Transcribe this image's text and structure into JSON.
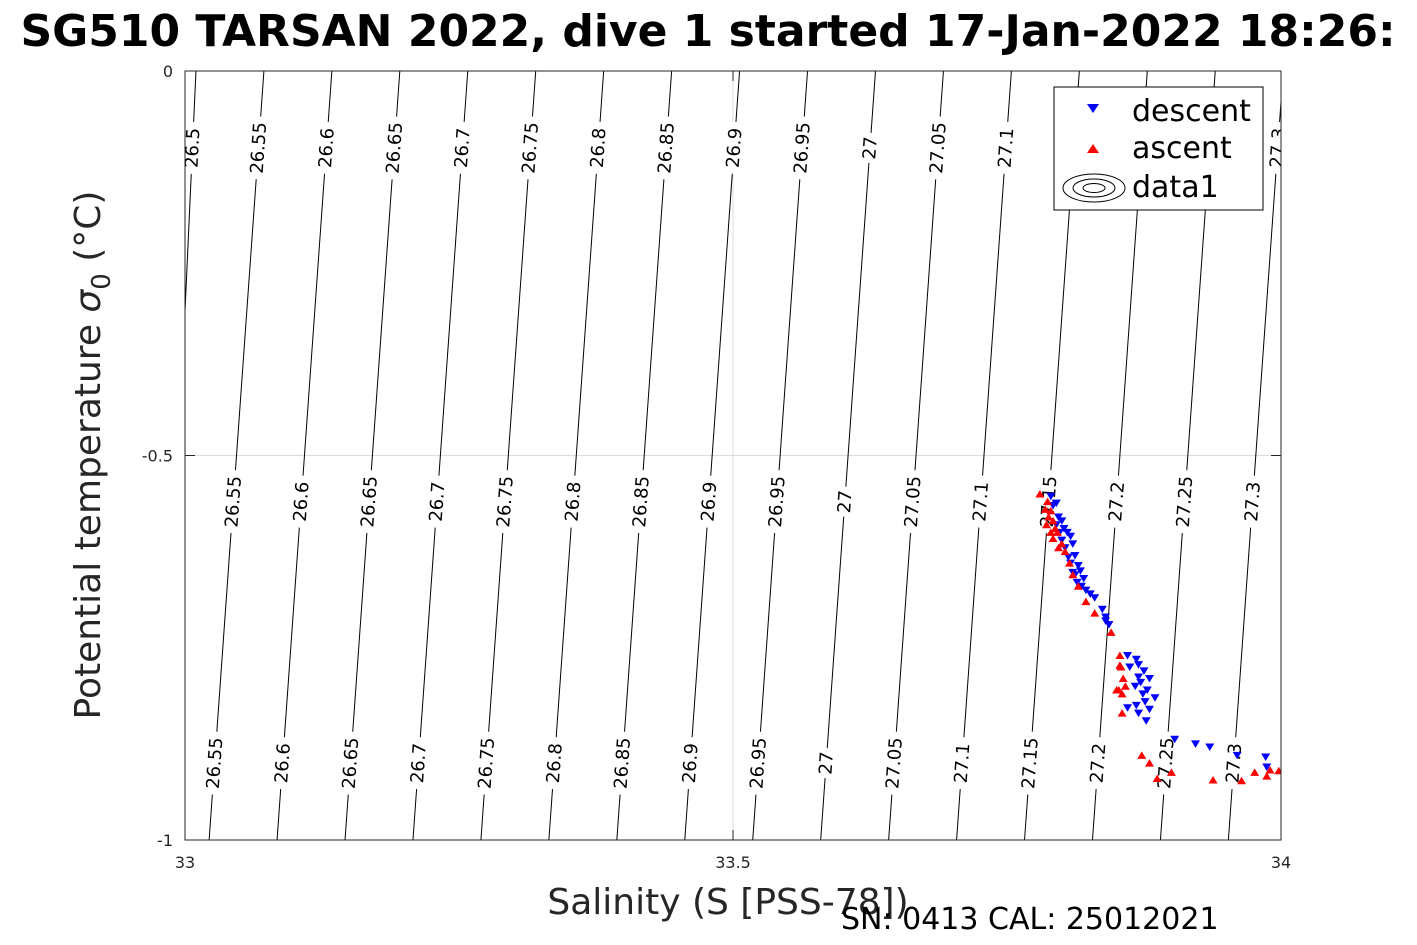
{
  "chart_data": {
    "type": "scatter",
    "title": "SG510 TARSAN 2022, dive 1 started 17-Jan-2022 18:26:",
    "xlabel": "Salinity (S [PSS-78])",
    "ylabel_text": "Potential temperature ",
    "ylabel_sigma": "σ",
    "ylabel_sub": "0",
    "ylabel_unit": " (°C)",
    "xlim": [
      33,
      34
    ],
    "ylim": [
      -1,
      0
    ],
    "x_ticks": [
      {
        "value": 33,
        "label": "33"
      },
      {
        "value": 33.5,
        "label": "33.5"
      },
      {
        "value": 34,
        "label": "34"
      }
    ],
    "y_ticks": [
      {
        "value": 0,
        "label": "0"
      },
      {
        "value": -0.5,
        "label": "-0.5"
      },
      {
        "value": -1,
        "label": "-1"
      }
    ],
    "grid": true,
    "legend_position": "top-right",
    "legend": [
      "descent",
      "ascent",
      "data1"
    ],
    "colors": {
      "descent": "#0000ff",
      "ascent": "#ff0000",
      "contour": "#000000",
      "grid": "#dcdcdc"
    },
    "contours": [
      {
        "level": 26.5,
        "s_at_top": 33.01,
        "s_at_bottom": 32.978,
        "labels": [
          {
            "text": "26.5",
            "temp": -0.1
          }
        ]
      },
      {
        "level": 26.55,
        "s_at_top": 33.072,
        "s_at_bottom": 33.022,
        "labels": [
          {
            "text": "26.55",
            "temp": -0.1
          },
          {
            "text": "26.55",
            "temp": -0.56
          },
          {
            "text": "26.55",
            "temp": -0.9
          }
        ]
      },
      {
        "level": 26.6,
        "s_at_top": 33.134,
        "s_at_bottom": 33.084,
        "labels": [
          {
            "text": "26.6",
            "temp": -0.1
          },
          {
            "text": "26.6",
            "temp": -0.56
          },
          {
            "text": "26.6",
            "temp": -0.9
          }
        ]
      },
      {
        "level": 26.65,
        "s_at_top": 33.196,
        "s_at_bottom": 33.146,
        "labels": [
          {
            "text": "26.65",
            "temp": -0.1
          },
          {
            "text": "26.65",
            "temp": -0.56
          },
          {
            "text": "26.65",
            "temp": -0.9
          }
        ]
      },
      {
        "level": 26.7,
        "s_at_top": 33.258,
        "s_at_bottom": 33.208,
        "labels": [
          {
            "text": "26.7",
            "temp": -0.1
          },
          {
            "text": "26.7",
            "temp": -0.56
          },
          {
            "text": "26.7",
            "temp": -0.9
          }
        ]
      },
      {
        "level": 26.75,
        "s_at_top": 33.32,
        "s_at_bottom": 33.27,
        "labels": [
          {
            "text": "26.75",
            "temp": -0.1
          },
          {
            "text": "26.75",
            "temp": -0.56
          },
          {
            "text": "26.75",
            "temp": -0.9
          }
        ]
      },
      {
        "level": 26.8,
        "s_at_top": 33.382,
        "s_at_bottom": 33.332,
        "labels": [
          {
            "text": "26.8",
            "temp": -0.1
          },
          {
            "text": "26.8",
            "temp": -0.56
          },
          {
            "text": "26.8",
            "temp": -0.9
          }
        ]
      },
      {
        "level": 26.85,
        "s_at_top": 33.444,
        "s_at_bottom": 33.394,
        "labels": [
          {
            "text": "26.85",
            "temp": -0.1
          },
          {
            "text": "26.85",
            "temp": -0.56
          },
          {
            "text": "26.85",
            "temp": -0.9
          }
        ]
      },
      {
        "level": 26.9,
        "s_at_top": 33.506,
        "s_at_bottom": 33.456,
        "labels": [
          {
            "text": "26.9",
            "temp": -0.1
          },
          {
            "text": "26.9",
            "temp": -0.56
          },
          {
            "text": "26.9",
            "temp": -0.9
          }
        ]
      },
      {
        "level": 26.95,
        "s_at_top": 33.568,
        "s_at_bottom": 33.518,
        "labels": [
          {
            "text": "26.95",
            "temp": -0.1
          },
          {
            "text": "26.95",
            "temp": -0.56
          },
          {
            "text": "26.95",
            "temp": -0.9
          }
        ]
      },
      {
        "level": 27,
        "s_at_top": 33.63,
        "s_at_bottom": 33.58,
        "labels": [
          {
            "text": "27",
            "temp": -0.1
          },
          {
            "text": "27",
            "temp": -0.56
          },
          {
            "text": "27",
            "temp": -0.9
          }
        ]
      },
      {
        "level": 27.05,
        "s_at_top": 33.692,
        "s_at_bottom": 33.642,
        "labels": [
          {
            "text": "27.05",
            "temp": -0.1
          },
          {
            "text": "27.05",
            "temp": -0.56
          },
          {
            "text": "27.05",
            "temp": -0.9
          }
        ]
      },
      {
        "level": 27.1,
        "s_at_top": 33.754,
        "s_at_bottom": 33.704,
        "labels": [
          {
            "text": "27.1",
            "temp": -0.1
          },
          {
            "text": "27.1",
            "temp": -0.56
          },
          {
            "text": "27.1",
            "temp": -0.9
          }
        ]
      },
      {
        "level": 27.15,
        "s_at_top": 33.816,
        "s_at_bottom": 33.766,
        "labels": [
          {
            "text": "27.15",
            "temp": -0.56
          },
          {
            "text": "27.15",
            "temp": -0.9
          }
        ]
      },
      {
        "level": 27.2,
        "s_at_top": 33.878,
        "s_at_bottom": 33.828,
        "labels": [
          {
            "text": "27.2",
            "temp": -0.56
          },
          {
            "text": "27.2",
            "temp": -0.9
          }
        ]
      },
      {
        "level": 27.25,
        "s_at_top": 33.94,
        "s_at_bottom": 33.89,
        "labels": [
          {
            "text": "27.25",
            "temp": -0.56
          },
          {
            "text": "27.25",
            "temp": -0.9
          }
        ]
      },
      {
        "level": 27.3,
        "s_at_top": 34.002,
        "s_at_bottom": 33.952,
        "labels": [
          {
            "text": "27.3",
            "temp": -0.1
          },
          {
            "text": "27.3",
            "temp": -0.56
          },
          {
            "text": "27.3",
            "temp": -0.9
          }
        ]
      }
    ],
    "series": [
      {
        "name": "descent",
        "marker": "triangle-down",
        "points": [
          [
            33.79,
            -0.553
          ],
          [
            33.795,
            -0.562
          ],
          [
            33.792,
            -0.565
          ],
          [
            33.797,
            -0.58
          ],
          [
            33.8,
            -0.585
          ],
          [
            33.795,
            -0.59
          ],
          [
            33.802,
            -0.595
          ],
          [
            33.798,
            -0.6
          ],
          [
            33.805,
            -0.6
          ],
          [
            33.808,
            -0.605
          ],
          [
            33.8,
            -0.61
          ],
          [
            33.81,
            -0.615
          ],
          [
            33.803,
            -0.62
          ],
          [
            33.812,
            -0.63
          ],
          [
            33.808,
            -0.64
          ],
          [
            33.815,
            -0.643
          ],
          [
            33.817,
            -0.65
          ],
          [
            33.812,
            -0.655
          ],
          [
            33.82,
            -0.66
          ],
          [
            33.814,
            -0.665
          ],
          [
            33.818,
            -0.67
          ],
          [
            33.822,
            -0.675
          ],
          [
            33.81,
            -0.652
          ],
          [
            33.806,
            -0.632
          ],
          [
            33.826,
            -0.68
          ],
          [
            33.83,
            -0.685
          ],
          [
            33.837,
            -0.7
          ],
          [
            33.84,
            -0.71
          ],
          [
            33.843,
            -0.72
          ],
          [
            33.84,
            -0.715
          ],
          [
            33.86,
            -0.76
          ],
          [
            33.868,
            -0.765
          ],
          [
            33.862,
            -0.775
          ],
          [
            33.875,
            -0.78
          ],
          [
            33.87,
            -0.788
          ],
          [
            33.88,
            -0.79
          ],
          [
            33.872,
            -0.795
          ],
          [
            33.867,
            -0.8
          ],
          [
            33.878,
            -0.805
          ],
          [
            33.885,
            -0.815
          ],
          [
            33.876,
            -0.82
          ],
          [
            33.868,
            -0.825
          ],
          [
            33.88,
            -0.83
          ],
          [
            33.87,
            -0.835
          ],
          [
            33.877,
            -0.845
          ],
          [
            33.86,
            -0.828
          ],
          [
            33.874,
            -0.81
          ],
          [
            33.87,
            -0.772
          ],
          [
            33.903,
            -0.869
          ],
          [
            33.922,
            -0.875
          ],
          [
            33.935,
            -0.879
          ],
          [
            33.96,
            -0.89
          ],
          [
            33.986,
            -0.892
          ],
          [
            33.987,
            -0.905
          ]
        ]
      },
      {
        "name": "ascent",
        "marker": "triangle-up",
        "points": [
          [
            33.78,
            -0.55
          ],
          [
            33.787,
            -0.56
          ],
          [
            33.785,
            -0.57
          ],
          [
            33.79,
            -0.572
          ],
          [
            33.788,
            -0.58
          ],
          [
            33.792,
            -0.585
          ],
          [
            33.786,
            -0.59
          ],
          [
            33.794,
            -0.595
          ],
          [
            33.79,
            -0.6
          ],
          [
            33.796,
            -0.6
          ],
          [
            33.792,
            -0.608
          ],
          [
            33.8,
            -0.615
          ],
          [
            33.797,
            -0.62
          ],
          [
            33.803,
            -0.625
          ],
          [
            33.807,
            -0.64
          ],
          [
            33.81,
            -0.655
          ],
          [
            33.815,
            -0.67
          ],
          [
            33.822,
            -0.69
          ],
          [
            33.83,
            -0.705
          ],
          [
            33.845,
            -0.73
          ],
          [
            33.853,
            -0.773
          ],
          [
            33.856,
            -0.79
          ],
          [
            33.858,
            -0.8
          ],
          [
            33.852,
            -0.805
          ],
          [
            33.855,
            -0.81
          ],
          [
            33.85,
            -0.805
          ],
          [
            33.853,
            -0.76
          ],
          [
            33.854,
            -0.775
          ],
          [
            33.855,
            -0.835
          ],
          [
            33.873,
            -0.89
          ],
          [
            33.88,
            -0.9
          ],
          [
            33.887,
            -0.92
          ],
          [
            33.9,
            -0.912
          ],
          [
            33.938,
            -0.922
          ],
          [
            33.964,
            -0.923
          ],
          [
            33.976,
            -0.912
          ],
          [
            33.987,
            -0.917
          ],
          [
            33.99,
            -0.909
          ],
          [
            33.998,
            -0.91
          ]
        ]
      }
    ]
  },
  "footer": {
    "serial": "SN: 0413  CAL: 25012021"
  }
}
